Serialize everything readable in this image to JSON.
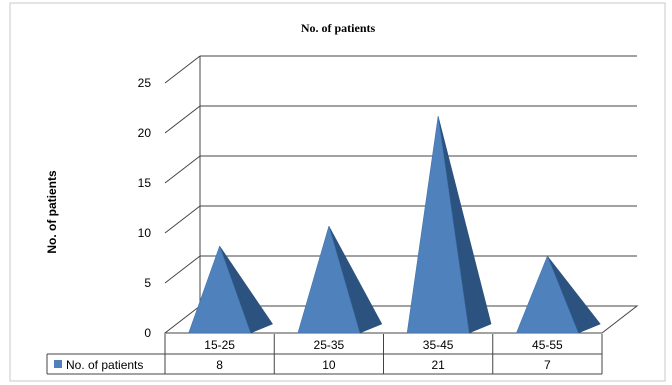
{
  "chart_data": {
    "type": "bar",
    "title": "No. of patients",
    "ylabel": "No. of patients",
    "xlabel": "",
    "categories": [
      "15-25",
      "25-35",
      "35-45",
      "45-55"
    ],
    "series": [
      {
        "name": "No. of patients",
        "values": [
          8,
          10,
          21,
          7
        ],
        "color": "#4f81bd"
      }
    ],
    "ylim": [
      0,
      25
    ],
    "yticks": [
      "0",
      "5",
      "10",
      "15",
      "20",
      "25"
    ],
    "data_table": true,
    "grid": true,
    "shape": "pyramid-3d"
  }
}
